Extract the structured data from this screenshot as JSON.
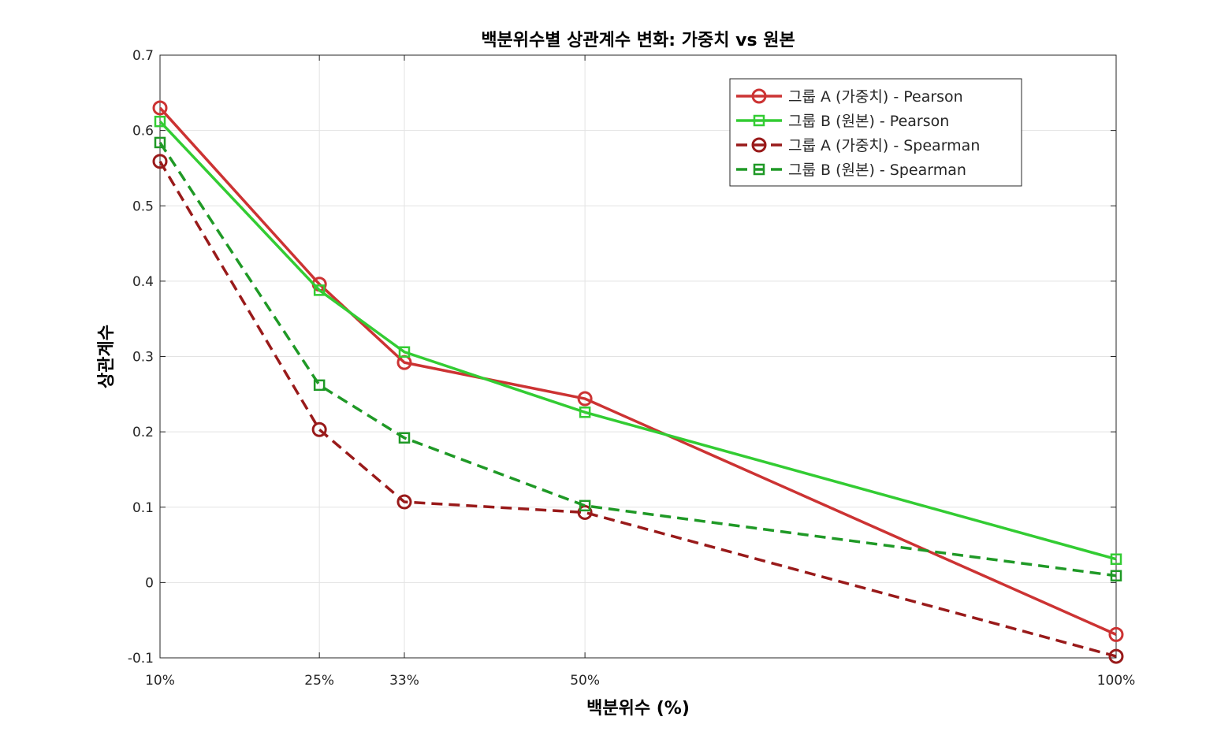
{
  "chart_data": {
    "type": "line",
    "title": "백분위수별 상관계수 변화: 가중치 vs 원본",
    "xlabel": "백분위수 (%)",
    "ylabel": "상관계수",
    "x": [
      10,
      25,
      33,
      50,
      100
    ],
    "x_tick_labels": [
      "10%",
      "25%",
      "33%",
      "50%",
      "100%"
    ],
    "ylim": [
      -0.1,
      0.7
    ],
    "y_ticks": [
      -0.1,
      0,
      0.1,
      0.2,
      0.3,
      0.4,
      0.5,
      0.6,
      0.7
    ],
    "y_tick_labels": [
      "-0.1",
      "0",
      "0.1",
      "0.2",
      "0.3",
      "0.4",
      "0.5",
      "0.6",
      "0.7"
    ],
    "grid": true,
    "legend_position": "top-right",
    "series": [
      {
        "name": "그룹 A (가중치) - Pearson",
        "values": [
          0.63,
          0.396,
          0.292,
          0.244,
          -0.069
        ],
        "color": "#cc3333",
        "dash": "solid",
        "marker": "circle"
      },
      {
        "name": "그룹 B (원본) - Pearson",
        "values": [
          0.612,
          0.388,
          0.306,
          0.226,
          0.031
        ],
        "color": "#33cc33",
        "dash": "solid",
        "marker": "square"
      },
      {
        "name": "그룹 A (가중치) - Spearman",
        "values": [
          0.559,
          0.203,
          0.107,
          0.093,
          -0.098
        ],
        "color": "#991a1a",
        "dash": "dashed",
        "marker": "circle"
      },
      {
        "name": "그룹 B (원본) - Spearman",
        "values": [
          0.584,
          0.262,
          0.192,
          0.102,
          0.009
        ],
        "color": "#1f9926",
        "dash": "dashed",
        "marker": "square"
      }
    ]
  }
}
